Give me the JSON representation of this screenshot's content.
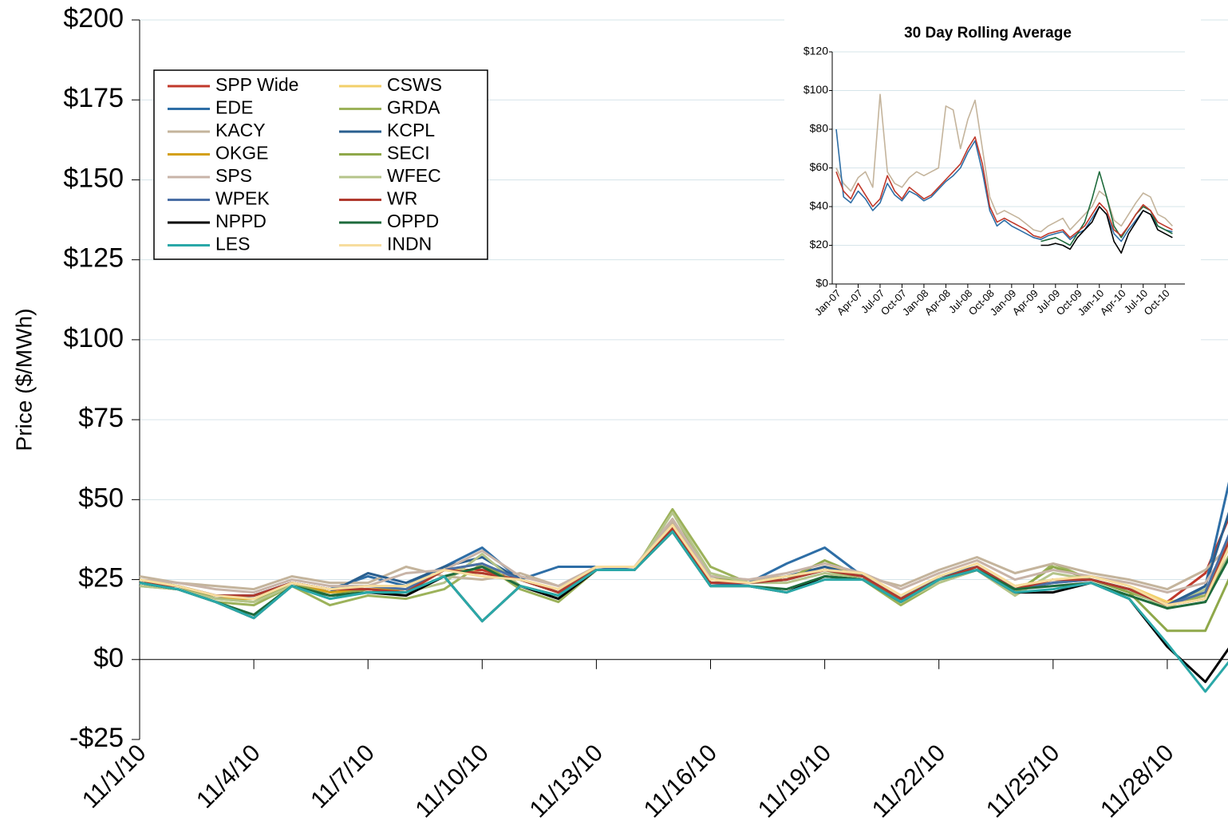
{
  "chart_data": [
    {
      "type": "line",
      "y_label": "Price ($/MWh)",
      "categories": [
        "11/1/10",
        null,
        null,
        "11/4/10",
        null,
        null,
        "11/7/10",
        null,
        null,
        "11/10/10",
        null,
        null,
        "11/13/10",
        null,
        null,
        "11/16/10",
        null,
        null,
        "11/19/10",
        null,
        null,
        "11/22/10",
        null,
        null,
        "11/25/10",
        null,
        null,
        "11/28/10",
        null,
        null
      ],
      "ylim": [
        -25,
        200
      ],
      "yticks": [
        {
          "value": -25,
          "label": "-$25"
        },
        {
          "value": 0,
          "label": "$0"
        },
        {
          "value": 25,
          "label": "$25"
        },
        {
          "value": 50,
          "label": "$50"
        },
        {
          "value": 75,
          "label": "$75"
        },
        {
          "value": 100,
          "label": "$100"
        },
        {
          "value": 125,
          "label": "$125"
        },
        {
          "value": 150,
          "label": "$150"
        },
        {
          "value": 175,
          "label": "$175"
        },
        {
          "value": 200,
          "label": "$200"
        }
      ],
      "grid": true,
      "legend": "top-left",
      "series": [
        {
          "name": "SPP Wide",
          "color": "#c0392b",
          "values": [
            24,
            23,
            20,
            20,
            24,
            22,
            22,
            21,
            28,
            28,
            25,
            21,
            29,
            28,
            41,
            24,
            24,
            26,
            29,
            26,
            19,
            25,
            29,
            22,
            25,
            25,
            22,
            18,
            27,
            55
          ]
        },
        {
          "name": "CSWS",
          "color": "#f2cf6a",
          "values": [
            25,
            23,
            20,
            19,
            24,
            22,
            23,
            23,
            29,
            27,
            25,
            22,
            29,
            29,
            42,
            25,
            24,
            26,
            29,
            27,
            20,
            26,
            30,
            23,
            25,
            26,
            23,
            18,
            20,
            50
          ]
        },
        {
          "name": "EDE",
          "color": "#2e6ea6",
          "values": [
            25,
            23,
            20,
            20,
            24,
            22,
            26,
            23,
            29,
            35,
            25,
            29,
            29,
            28,
            40,
            23,
            24,
            30,
            35,
            26,
            19,
            25,
            29,
            22,
            24,
            25,
            22,
            16,
            23,
            75
          ]
        },
        {
          "name": "GRDA",
          "color": "#9cb25a",
          "values": [
            23,
            22,
            18,
            17,
            23,
            17,
            20,
            19,
            22,
            30,
            22,
            18,
            28,
            28,
            47,
            29,
            24,
            25,
            28,
            25,
            17,
            24,
            28,
            20,
            30,
            25,
            21,
            17,
            20,
            40
          ]
        },
        {
          "name": "KACY",
          "color": "#c4b49c",
          "values": [
            26,
            24,
            23,
            22,
            26,
            24,
            24,
            29,
            26,
            25,
            27,
            23,
            29,
            29,
            43,
            26,
            25,
            26,
            28,
            26,
            23,
            28,
            32,
            27,
            30,
            27,
            25,
            22,
            28,
            40
          ]
        },
        {
          "name": "KCPL",
          "color": "#2a5f8f",
          "values": [
            24,
            23,
            19,
            20,
            24,
            21,
            27,
            24,
            29,
            32,
            25,
            21,
            28,
            28,
            41,
            24,
            24,
            26,
            29,
            26,
            19,
            26,
            29,
            22,
            25,
            25,
            22,
            17,
            23,
            60
          ]
        },
        {
          "name": "OKGE",
          "color": "#d4a017",
          "values": [
            24,
            23,
            19,
            19,
            24,
            21,
            22,
            22,
            28,
            27,
            25,
            21,
            28,
            28,
            42,
            25,
            24,
            25,
            28,
            26,
            19,
            25,
            29,
            22,
            25,
            25,
            22,
            17,
            19,
            45
          ]
        },
        {
          "name": "SECI",
          "color": "#8fa84a",
          "values": [
            25,
            23,
            19,
            18,
            24,
            20,
            22,
            21,
            28,
            30,
            23,
            20,
            28,
            28,
            46,
            26,
            24,
            25,
            31,
            26,
            18,
            25,
            29,
            21,
            29,
            25,
            21,
            9,
            9,
            35
          ]
        },
        {
          "name": "SPS",
          "color": "#c8b4a8",
          "values": [
            25,
            24,
            22,
            21,
            25,
            23,
            23,
            27,
            28,
            34,
            26,
            23,
            29,
            29,
            44,
            26,
            25,
            27,
            30,
            27,
            22,
            27,
            31,
            25,
            28,
            26,
            24,
            21,
            24,
            42
          ]
        },
        {
          "name": "WFEC",
          "color": "#b5c48a",
          "values": [
            23,
            22,
            19,
            18,
            23,
            19,
            21,
            21,
            24,
            33,
            23,
            20,
            28,
            28,
            46,
            27,
            24,
            24,
            27,
            25,
            18,
            24,
            28,
            20,
            27,
            25,
            22,
            16,
            22,
            38
          ]
        },
        {
          "name": "WPEK",
          "color": "#4a6fa5",
          "values": [
            24,
            23,
            20,
            20,
            24,
            22,
            23,
            22,
            28,
            30,
            25,
            21,
            28,
            28,
            41,
            24,
            24,
            25,
            28,
            26,
            19,
            25,
            29,
            22,
            24,
            25,
            22,
            17,
            21,
            50
          ]
        },
        {
          "name": "WR",
          "color": "#b03a2e",
          "values": [
            24,
            23,
            20,
            20,
            24,
            22,
            22,
            21,
            28,
            27,
            25,
            21,
            28,
            28,
            41,
            24,
            24,
            25,
            28,
            26,
            19,
            25,
            29,
            22,
            25,
            25,
            22,
            17,
            19,
            48
          ]
        },
        {
          "name": "NPPD",
          "color": "#000000",
          "values": [
            24,
            22,
            18,
            13,
            23,
            20,
            21,
            20,
            26,
            12,
            23,
            19,
            28,
            28,
            40,
            23,
            23,
            21,
            26,
            25,
            18,
            25,
            28,
            21,
            21,
            24,
            19,
            4,
            -7,
            10
          ]
        },
        {
          "name": "OPPD",
          "color": "#1e6b3c",
          "values": [
            24,
            22,
            18,
            14,
            23,
            20,
            21,
            21,
            26,
            29,
            23,
            20,
            28,
            28,
            40,
            23,
            23,
            22,
            26,
            25,
            18,
            25,
            28,
            22,
            23,
            24,
            20,
            16,
            18,
            40
          ]
        },
        {
          "name": "LES",
          "color": "#2aa8a8",
          "values": [
            24,
            22,
            18,
            13,
            23,
            19,
            21,
            21,
            26,
            12,
            23,
            20,
            28,
            28,
            40,
            23,
            23,
            21,
            25,
            25,
            18,
            25,
            28,
            21,
            22,
            24,
            19,
            5,
            -10,
            5
          ]
        },
        {
          "name": "INDN",
          "color": "#f7dd9e",
          "values": [
            25,
            23,
            20,
            19,
            24,
            22,
            23,
            23,
            28,
            26,
            25,
            22,
            29,
            29,
            42,
            25,
            24,
            26,
            28,
            27,
            20,
            26,
            30,
            23,
            25,
            26,
            23,
            17,
            19,
            45
          ]
        }
      ]
    },
    {
      "type": "line",
      "title": "30 Day Rolling Average",
      "categories": [
        "Jan-07",
        null,
        null,
        "Apr-07",
        null,
        null,
        "Jul-07",
        null,
        null,
        "Oct-07",
        null,
        null,
        "Jan-08",
        null,
        null,
        "Apr-08",
        null,
        null,
        "Jul-08",
        null,
        null,
        "Oct-08",
        null,
        null,
        "Jan-09",
        null,
        null,
        "Apr-09",
        null,
        null,
        "Jul-09",
        null,
        null,
        "Oct-09",
        null,
        null,
        "Jan-10",
        null,
        null,
        "Apr-10",
        null,
        null,
        "Jul-10",
        null,
        null,
        "Oct-10",
        null
      ],
      "ylim": [
        0,
        120
      ],
      "yticks": [
        {
          "value": 0,
          "label": "$0"
        },
        {
          "value": 20,
          "label": "$20"
        },
        {
          "value": 40,
          "label": "$40"
        },
        {
          "value": 60,
          "label": "$60"
        },
        {
          "value": 80,
          "label": "$80"
        },
        {
          "value": 100,
          "label": "$100"
        },
        {
          "value": 120,
          "label": "$120"
        }
      ],
      "grid": true,
      "series": [
        {
          "color": "#c4b49c",
          "values": [
            60,
            52,
            48,
            55,
            58,
            50,
            98,
            58,
            52,
            50,
            55,
            58,
            56,
            58,
            60,
            92,
            90,
            70,
            85,
            95,
            70,
            45,
            36,
            38,
            36,
            34,
            31,
            28,
            27,
            30,
            32,
            34,
            28,
            32,
            36,
            40,
            48,
            45,
            33,
            30,
            36,
            42,
            47,
            45,
            36,
            34,
            30
          ]
        },
        {
          "color": "#2e6ea6",
          "values": [
            80,
            45,
            42,
            48,
            44,
            38,
            42,
            52,
            46,
            43,
            48,
            46,
            43,
            45,
            49,
            53,
            56,
            60,
            68,
            74,
            58,
            38,
            30,
            33,
            30,
            28,
            26,
            24,
            23,
            25,
            26,
            27,
            23,
            26,
            28,
            34,
            40,
            36,
            26,
            22,
            28,
            33,
            38,
            36,
            30,
            28,
            27
          ]
        },
        {
          "color": "#000000",
          "values": [
            null,
            null,
            null,
            null,
            null,
            null,
            null,
            null,
            null,
            null,
            null,
            null,
            null,
            null,
            null,
            null,
            null,
            null,
            null,
            null,
            null,
            null,
            null,
            null,
            null,
            null,
            null,
            null,
            20,
            20,
            21,
            20,
            18,
            24,
            28,
            32,
            40,
            36,
            22,
            16,
            26,
            32,
            38,
            36,
            28,
            26,
            24
          ]
        },
        {
          "color": "#1e6b3c",
          "values": [
            null,
            null,
            null,
            null,
            null,
            null,
            null,
            null,
            null,
            null,
            null,
            null,
            null,
            null,
            null,
            null,
            null,
            null,
            null,
            null,
            null,
            null,
            null,
            null,
            null,
            null,
            null,
            null,
            22,
            23,
            24,
            22,
            20,
            26,
            32,
            44,
            58,
            45,
            30,
            24,
            30,
            36,
            40,
            38,
            30,
            28,
            26
          ]
        },
        {
          "color": "#c0392b",
          "values": [
            58,
            48,
            44,
            52,
            46,
            40,
            44,
            56,
            48,
            44,
            50,
            47,
            44,
            46,
            50,
            54,
            58,
            62,
            70,
            76,
            62,
            40,
            32,
            34,
            32,
            30,
            28,
            25,
            24,
            26,
            27,
            28,
            24,
            27,
            30,
            36,
            42,
            38,
            28,
            25,
            30,
            36,
            41,
            38,
            32,
            30,
            28
          ]
        }
      ]
    }
  ]
}
